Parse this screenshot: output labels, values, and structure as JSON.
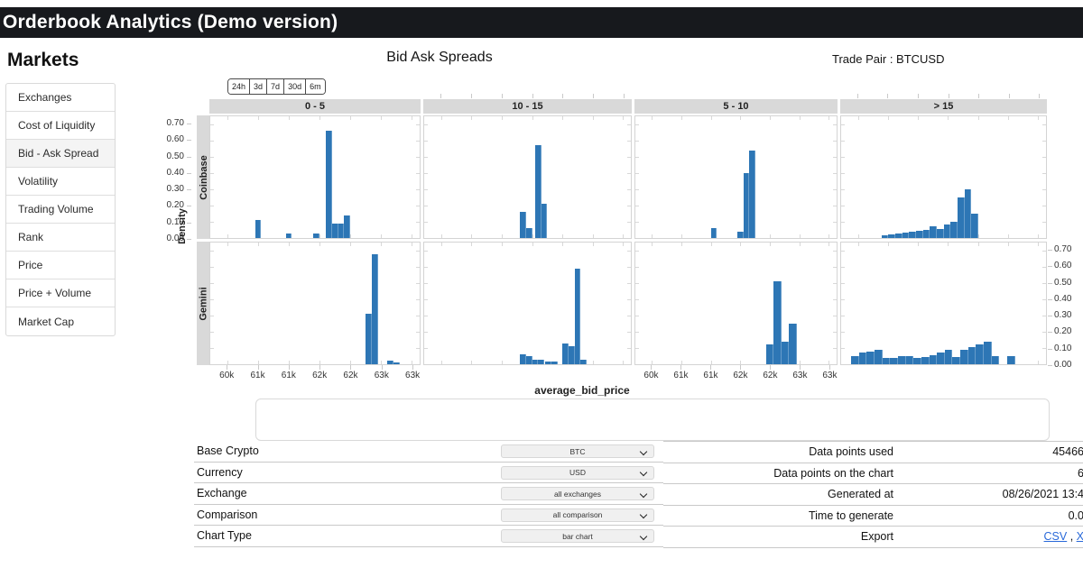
{
  "header": {
    "title": "Orderbook Analytics (Demo version)"
  },
  "sidebar": {
    "title": "Markets",
    "items": [
      {
        "label": "Exchanges",
        "selected": false
      },
      {
        "label": "Cost of Liquidity",
        "selected": false
      },
      {
        "label": "Bid - Ask Spread",
        "selected": true
      },
      {
        "label": "Volatility",
        "selected": false
      },
      {
        "label": "Trading Volume",
        "selected": false
      },
      {
        "label": "Rank",
        "selected": false
      },
      {
        "label": "Price",
        "selected": false
      },
      {
        "label": "Price + Volume",
        "selected": false
      },
      {
        "label": "Market Cap",
        "selected": false
      }
    ]
  },
  "chart": {
    "title": "Bid Ask Spreads",
    "trade_pair_label": "Trade Pair : BTCUSD",
    "range_buttons": [
      "24h",
      "3d",
      "7d",
      "30d",
      "6m"
    ]
  },
  "chart_data": {
    "type": "bar",
    "subtype": "faceted-histogram",
    "title": "Bid Ask Spreads",
    "xlabel": "average_bid_price",
    "ylabel": "Density",
    "facet_columns": [
      "0 - 5",
      "10 - 15",
      "5 - 10",
      "> 15"
    ],
    "facet_rows": [
      "Coinbase",
      "Gemini"
    ],
    "x_ticks": {
      "values_k": [
        60,
        60.5,
        61,
        61.5,
        62,
        62.5,
        63
      ],
      "labels": [
        "60k",
        "61k",
        "61k",
        "62k",
        "62k",
        "63k",
        "63k"
      ]
    },
    "x_range_k": [
      59.72,
      63.13
    ],
    "y_ticks": [
      "0.00",
      "0.10",
      "0.20",
      "0.30",
      "0.40",
      "0.50",
      "0.60",
      "0.70"
    ],
    "y_range": [
      0,
      0.75
    ],
    "bar_color": "#2d76b5",
    "bin_width_k": 0.1,
    "panels": [
      {
        "row": "Coinbase",
        "col": "0 - 5",
        "bars": [
          [
            60.5,
            0.11
          ],
          [
            61.0,
            0.03
          ],
          [
            61.45,
            0.03
          ],
          [
            61.65,
            0.66
          ],
          [
            61.75,
            0.09
          ],
          [
            61.85,
            0.09
          ],
          [
            61.95,
            0.14
          ]
        ]
      },
      {
        "row": "Coinbase",
        "col": "10 - 15",
        "bars": [
          [
            61.35,
            0.16
          ],
          [
            61.45,
            0.06
          ],
          [
            61.6,
            0.57
          ],
          [
            61.7,
            0.21
          ]
        ]
      },
      {
        "row": "Coinbase",
        "col": "5 - 10",
        "bars": [
          [
            61.05,
            0.06
          ],
          [
            61.5,
            0.04
          ],
          [
            61.6,
            0.4
          ],
          [
            61.7,
            0.54
          ]
        ]
      },
      {
        "row": "Coinbase",
        "col": "> 15",
        "bin": 0.115,
        "bars": [
          [
            60.45,
            0.015
          ],
          [
            60.565,
            0.02
          ],
          [
            60.68,
            0.03
          ],
          [
            60.795,
            0.035
          ],
          [
            60.91,
            0.04
          ],
          [
            61.025,
            0.045
          ],
          [
            61.14,
            0.05
          ],
          [
            61.255,
            0.07
          ],
          [
            61.37,
            0.055
          ],
          [
            61.485,
            0.085
          ],
          [
            61.6,
            0.1
          ],
          [
            61.715,
            0.25
          ],
          [
            61.83,
            0.3
          ],
          [
            61.945,
            0.15
          ]
        ]
      },
      {
        "row": "Gemini",
        "col": "0 - 5",
        "bars": [
          [
            62.3,
            0.31
          ],
          [
            62.4,
            0.68
          ],
          [
            62.65,
            0.02
          ],
          [
            62.75,
            0.01
          ]
        ]
      },
      {
        "row": "Gemini",
        "col": "10 - 15",
        "bars": [
          [
            61.35,
            0.06
          ],
          [
            61.45,
            0.05
          ],
          [
            61.55,
            0.03
          ],
          [
            61.65,
            0.03
          ],
          [
            61.77,
            0.015
          ],
          [
            61.87,
            0.015
          ],
          [
            62.05,
            0.13
          ],
          [
            62.15,
            0.11
          ],
          [
            62.25,
            0.59
          ],
          [
            62.35,
            0.03
          ]
        ]
      },
      {
        "row": "Gemini",
        "col": "5 - 10",
        "bin": 0.13,
        "bars": [
          [
            62.0,
            0.12
          ],
          [
            62.13,
            0.51
          ],
          [
            62.26,
            0.14
          ],
          [
            62.39,
            0.25
          ]
        ]
      },
      {
        "row": "Gemini",
        "col": "> 15",
        "bin": 0.13,
        "bars": [
          [
            59.95,
            0.05
          ],
          [
            60.08,
            0.07
          ],
          [
            60.21,
            0.08
          ],
          [
            60.34,
            0.09
          ],
          [
            60.47,
            0.04
          ],
          [
            60.6,
            0.04
          ],
          [
            60.73,
            0.05
          ],
          [
            60.86,
            0.05
          ],
          [
            60.99,
            0.04
          ],
          [
            61.12,
            0.045
          ],
          [
            61.25,
            0.055
          ],
          [
            61.38,
            0.075
          ],
          [
            61.51,
            0.09
          ],
          [
            61.64,
            0.045
          ],
          [
            61.77,
            0.09
          ],
          [
            61.9,
            0.105
          ],
          [
            62.03,
            0.12
          ],
          [
            62.16,
            0.14
          ],
          [
            62.29,
            0.05
          ],
          [
            62.55,
            0.05
          ]
        ]
      }
    ]
  },
  "form": {
    "rows": [
      {
        "label": "Base Crypto",
        "value": "BTC"
      },
      {
        "label": "Currency",
        "value": "USD"
      },
      {
        "label": "Exchange",
        "value": "all exchanges"
      },
      {
        "label": "Comparison",
        "value": "all comparison"
      },
      {
        "label": "Chart Type",
        "value": "bar chart"
      }
    ]
  },
  "info": {
    "rows": [
      {
        "label": "Data points used",
        "value": "45466"
      },
      {
        "label": "Data points on the chart",
        "value": "6"
      },
      {
        "label": "Generated at",
        "value": "08/26/2021 13:4"
      },
      {
        "label": "Time to generate",
        "value": "0.0"
      },
      {
        "label": "Export",
        "value": "",
        "links": [
          "CSV",
          "X"
        ],
        "separator": " , "
      }
    ]
  }
}
